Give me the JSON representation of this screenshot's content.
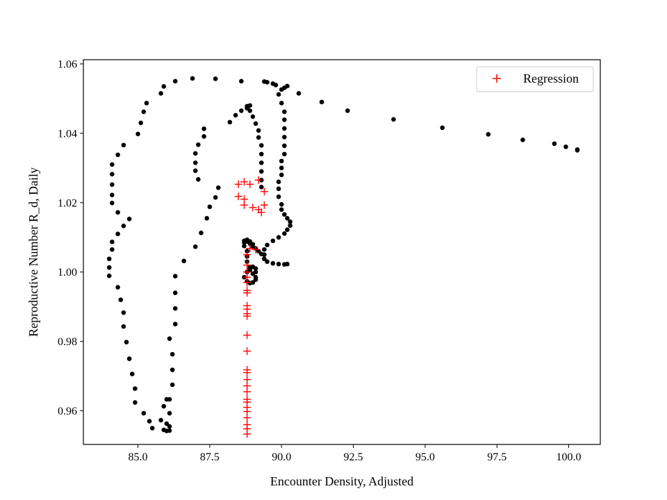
{
  "chart_data": {
    "type": "scatter",
    "xlabel": "Encounter Density, Adjusted",
    "ylabel": "Reproductive Number R_d, Daily",
    "xlim": [
      83.1,
      101.1
    ],
    "ylim": [
      0.9503,
      1.0612
    ],
    "xticks": [
      85.0,
      87.5,
      90.0,
      92.5,
      95.0,
      97.5,
      100.0
    ],
    "xtick_labels": [
      "85.0",
      "87.5",
      "90.0",
      "92.5",
      "95.0",
      "97.5",
      "100.0"
    ],
    "yticks": [
      0.96,
      0.98,
      1.0,
      1.02,
      1.04,
      1.06
    ],
    "ytick_labels": [
      "0.96",
      "0.98",
      "1.00",
      "1.02",
      "1.04",
      "1.06"
    ],
    "grid": false,
    "legend_position": "top-right",
    "series": [
      {
        "marker": "dot",
        "color": "#000000",
        "points": [
          [
            100.3,
            1.0353
          ],
          [
            100.3,
            1.0351
          ],
          [
            99.9,
            1.0361
          ],
          [
            99.5,
            1.037
          ],
          [
            98.4,
            1.0381
          ],
          [
            97.2,
            1.0397
          ],
          [
            95.6,
            1.0416
          ],
          [
            93.9,
            1.044
          ],
          [
            92.3,
            1.0465
          ],
          [
            91.4,
            1.049
          ],
          [
            90.6,
            1.0515
          ],
          [
            90.2,
            1.0536
          ],
          [
            90.1,
            1.0531
          ],
          [
            90.0,
            1.0526
          ],
          [
            89.8,
            1.0539
          ],
          [
            89.7,
            1.0543
          ],
          [
            89.5,
            1.0547
          ],
          [
            89.4,
            1.0549
          ],
          [
            89.9,
            1.0512
          ],
          [
            90.0,
            1.0487
          ],
          [
            90.1,
            1.0462
          ],
          [
            90.1,
            1.0439
          ],
          [
            90.1,
            1.0414
          ],
          [
            90.1,
            1.0389
          ],
          [
            90.1,
            1.0364
          ],
          [
            90.1,
            1.034
          ],
          [
            90.0,
            1.032
          ],
          [
            90.0,
            1.03
          ],
          [
            90.0,
            1.028
          ],
          [
            89.9,
            1.026
          ],
          [
            89.9,
            1.024
          ],
          [
            89.9,
            1.0217
          ],
          [
            90.0,
            1.0195
          ],
          [
            90.0,
            1.018
          ],
          [
            90.1,
            1.0166
          ],
          [
            90.2,
            1.0155
          ],
          [
            90.3,
            1.0145
          ],
          [
            90.3,
            1.0134
          ],
          [
            90.2,
            1.0122
          ],
          [
            90.1,
            1.0111
          ],
          [
            89.9,
            1.01
          ],
          [
            89.7,
            1.009
          ],
          [
            89.5,
            1.0078
          ],
          [
            89.4,
            1.0065
          ],
          [
            89.4,
            1.005
          ],
          [
            89.4,
            1.0038
          ],
          [
            89.5,
            1.003
          ],
          [
            89.7,
            1.0025
          ],
          [
            89.9,
            1.0023
          ],
          [
            90.1,
            1.0022
          ],
          [
            90.2,
            1.0023
          ],
          [
            89.3,
            1.0052
          ],
          [
            89.2,
            1.006
          ],
          [
            89.1,
            1.0068
          ],
          [
            89.0,
            1.0072
          ],
          [
            88.9,
            1.0082
          ],
          [
            88.8,
            1.0088
          ],
          [
            88.7,
            1.0085
          ],
          [
            88.7,
            1.0075
          ],
          [
            88.8,
            1.006
          ],
          [
            88.8,
            1.0045
          ],
          [
            88.8,
            1.003
          ],
          [
            88.9,
            1.0015
          ],
          [
            88.9,
            1.0005
          ],
          [
            89.0,
            0.9995
          ],
          [
            89.1,
            0.9985
          ],
          [
            89.1,
            0.9978
          ],
          [
            89.0,
            0.997
          ],
          [
            88.9,
            0.9968
          ],
          [
            88.8,
            0.9973
          ],
          [
            88.7,
            0.9985
          ],
          [
            88.8,
            1.0
          ],
          [
            88.9,
            1.001
          ],
          [
            89.0,
            1.0015
          ],
          [
            89.1,
            1.001
          ],
          [
            89.1,
            1.0
          ],
          [
            88.7,
            1.009
          ],
          [
            88.8,
            1.0093
          ],
          [
            88.9,
            1.0088
          ],
          [
            89.0,
            1.008
          ],
          [
            89.3,
            1.0245
          ],
          [
            89.3,
            1.0265
          ],
          [
            89.3,
            1.029
          ],
          [
            89.3,
            1.0315
          ],
          [
            89.3,
            1.034
          ],
          [
            89.3,
            1.0365
          ],
          [
            89.2,
            1.0388
          ],
          [
            89.2,
            1.0408
          ],
          [
            89.1,
            1.0428
          ],
          [
            89.0,
            1.0448
          ],
          [
            88.9,
            1.0465
          ],
          [
            88.8,
            1.0475
          ],
          [
            88.8,
            1.0478
          ],
          [
            88.9,
            1.048
          ],
          [
            88.8,
            1.0472
          ],
          [
            88.6,
            1.0465
          ],
          [
            88.4,
            1.0452
          ],
          [
            88.2,
            1.0432
          ],
          [
            87.8,
            1.0243
          ],
          [
            87.7,
            1.0215
          ],
          [
            87.5,
            1.0188
          ],
          [
            87.4,
            1.0155
          ],
          [
            87.2,
            1.0113
          ],
          [
            87.0,
            1.0073
          ],
          [
            86.6,
            1.0032
          ],
          [
            86.3,
            0.9988
          ],
          [
            86.3,
            0.994
          ],
          [
            86.3,
            0.9895
          ],
          [
            86.3,
            0.985
          ],
          [
            86.1,
            0.9808
          ],
          [
            86.2,
            0.9763
          ],
          [
            86.2,
            0.9718
          ],
          [
            86.2,
            0.9675
          ],
          [
            86.1,
            0.9633
          ],
          [
            86.1,
            0.9593
          ],
          [
            86.0,
            0.9563
          ],
          [
            86.1,
            0.9555
          ],
          [
            86.1,
            0.9543
          ],
          [
            86.0,
            0.9542
          ],
          [
            85.9,
            0.9545
          ],
          [
            85.8,
            0.9573
          ],
          [
            85.9,
            0.9613
          ],
          [
            86.0,
            0.9633
          ],
          [
            85.5,
            0.955
          ],
          [
            85.4,
            0.957
          ],
          [
            85.2,
            0.9593
          ],
          [
            84.9,
            0.9624
          ],
          [
            84.9,
            0.9664
          ],
          [
            84.8,
            0.9706
          ],
          [
            84.7,
            0.975
          ],
          [
            84.6,
            0.9798
          ],
          [
            84.5,
            0.9843
          ],
          [
            84.5,
            0.9883
          ],
          [
            84.4,
            0.992
          ],
          [
            84.3,
            0.9956
          ],
          [
            84.0,
            0.9989
          ],
          [
            84.0,
            1.0013
          ],
          [
            84.0,
            1.0038
          ],
          [
            84.1,
            1.0065
          ],
          [
            84.1,
            1.0087
          ],
          [
            84.3,
            1.011
          ],
          [
            84.5,
            1.0133
          ],
          [
            84.7,
            1.0153
          ],
          [
            84.3,
            1.0172
          ],
          [
            84.1,
            1.0199
          ],
          [
            84.1,
            1.0222
          ],
          [
            84.1,
            1.0252
          ],
          [
            84.1,
            1.0282
          ],
          [
            84.1,
            1.031
          ],
          [
            84.3,
            1.0338
          ],
          [
            84.5,
            1.0366
          ],
          [
            85.0,
            1.0398
          ],
          [
            85.1,
            1.043
          ],
          [
            85.2,
            1.0462
          ],
          [
            85.3,
            1.0487
          ],
          [
            85.8,
            1.0515
          ],
          [
            85.9,
            1.0535
          ],
          [
            86.3,
            1.055
          ],
          [
            86.9,
            1.0558
          ],
          [
            87.7,
            1.0557
          ],
          [
            88.6,
            1.055
          ],
          [
            87.3,
            1.0413
          ],
          [
            87.3,
            1.0391
          ],
          [
            87.1,
            1.0367
          ],
          [
            87.0,
            1.0342
          ],
          [
            87.0,
            1.0315
          ],
          [
            87.0,
            1.0292
          ],
          [
            87.1,
            1.0267
          ]
        ]
      },
      {
        "name": "Regression",
        "marker": "plus",
        "color": "#ff0000",
        "points": [
          [
            88.5,
            1.0253
          ],
          [
            88.7,
            1.026
          ],
          [
            88.9,
            1.0253
          ],
          [
            89.2,
            1.0265
          ],
          [
            89.4,
            1.0232
          ],
          [
            88.5,
            1.0218
          ],
          [
            88.7,
            1.021
          ],
          [
            88.7,
            1.0193
          ],
          [
            89.0,
            1.0186
          ],
          [
            89.2,
            1.018
          ],
          [
            89.3,
            1.0172
          ],
          [
            89.4,
            1.0193
          ],
          [
            88.9,
            1.0068
          ],
          [
            89.1,
            1.0065
          ],
          [
            88.8,
            1.005
          ],
          [
            88.8,
            1.002
          ],
          [
            88.8,
            1.0
          ],
          [
            88.8,
            0.9985
          ],
          [
            88.8,
            0.997
          ],
          [
            88.8,
            0.9947
          ],
          [
            88.8,
            0.994
          ],
          [
            88.8,
            0.9903
          ],
          [
            88.8,
            0.9893
          ],
          [
            88.8,
            0.988
          ],
          [
            88.8,
            0.9873
          ],
          [
            88.8,
            0.9818
          ],
          [
            88.8,
            0.9772
          ],
          [
            88.8,
            0.9718
          ],
          [
            88.8,
            0.971
          ],
          [
            88.8,
            0.969
          ],
          [
            88.8,
            0.9672
          ],
          [
            88.8,
            0.9655
          ],
          [
            88.8,
            0.9633
          ],
          [
            88.8,
            0.9625
          ],
          [
            88.8,
            0.961
          ],
          [
            88.8,
            0.9598
          ],
          [
            88.8,
            0.958
          ],
          [
            88.8,
            0.956
          ],
          [
            88.8,
            0.9548
          ],
          [
            88.8,
            0.9533
          ]
        ]
      }
    ]
  }
}
